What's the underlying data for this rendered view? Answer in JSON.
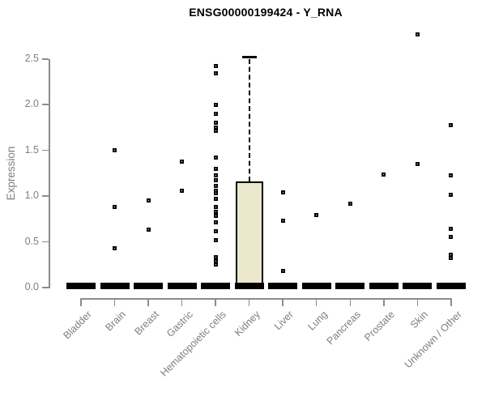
{
  "title": "ENSG00000199424 - Y_RNA",
  "chart_data": {
    "type": "boxplot",
    "title": "ENSG00000199424 - Y_RNA",
    "xlabel": "",
    "ylabel": "Expression",
    "ylim": [
      -0.08,
      2.85
    ],
    "yticks": [
      0,
      0.5,
      1,
      1.5,
      2,
      2.5
    ],
    "ytick_labels": [
      "0.0",
      "0.5",
      "1.0",
      "1.5",
      "2.0",
      "2.5"
    ],
    "grid": false,
    "legend": false,
    "categories": [
      "Bladder",
      "Brain",
      "Breast",
      "Gastric",
      "Hematopoietic cells",
      "Kidney",
      "Liver",
      "Lung",
      "Pancreas",
      "Prostate",
      "Skin",
      "Unknown / Other"
    ],
    "groups": [
      {
        "label": "Bladder",
        "q1": 0,
        "median": 0.02,
        "q3": 0.05,
        "whisker_high": null,
        "outliers": []
      },
      {
        "label": "Brain",
        "q1": 0,
        "median": 0.02,
        "q3": 0.05,
        "whisker_high": null,
        "outliers": [
          1.5,
          0.88,
          0.43
        ]
      },
      {
        "label": "Breast",
        "q1": 0,
        "median": 0.02,
        "q3": 0.05,
        "whisker_high": null,
        "outliers": [
          0.95,
          0.63
        ]
      },
      {
        "label": "Gastric",
        "q1": 0,
        "median": 0.02,
        "q3": 0.05,
        "whisker_high": null,
        "outliers": [
          1.38,
          1.06
        ]
      },
      {
        "label": "Hematopoietic cells",
        "q1": 0,
        "median": 0.02,
        "q3": 0.05,
        "whisker_high": null,
        "outliers": [
          2.42,
          2.34,
          2.0,
          1.9,
          1.8,
          1.75,
          1.71,
          1.42,
          1.3,
          1.23,
          1.17,
          1.11,
          1.06,
          1.03,
          0.97,
          0.88,
          0.83,
          0.78,
          0.71,
          0.62,
          0.52,
          0.33,
          0.29,
          0.25
        ]
      },
      {
        "label": "Kidney",
        "q1": 0,
        "median": 0.02,
        "q3": 1.15,
        "whisker_high": 2.52,
        "outliers": []
      },
      {
        "label": "Liver",
        "q1": 0,
        "median": 0.02,
        "q3": 0.05,
        "whisker_high": null,
        "outliers": [
          1.04,
          0.73,
          0.18
        ]
      },
      {
        "label": "Lung",
        "q1": 0,
        "median": 0.02,
        "q3": 0.05,
        "whisker_high": null,
        "outliers": [
          0.79
        ]
      },
      {
        "label": "Pancreas",
        "q1": 0,
        "median": 0.02,
        "q3": 0.05,
        "whisker_high": null,
        "outliers": [
          0.92
        ]
      },
      {
        "label": "Prostate",
        "q1": 0,
        "median": 0.02,
        "q3": 0.05,
        "whisker_high": null,
        "outliers": [
          1.24
        ]
      },
      {
        "label": "Skin",
        "q1": 0,
        "median": 0.02,
        "q3": 0.05,
        "whisker_high": null,
        "outliers": [
          2.77,
          1.35
        ]
      },
      {
        "label": "Unknown / Other",
        "q1": 0,
        "median": 0.02,
        "q3": 0.05,
        "whisker_high": null,
        "outliers": [
          1.78,
          1.23,
          1.01,
          0.64,
          0.55,
          0.36,
          0.32
        ]
      }
    ],
    "colors": {
      "box_fill": "#ece8cd",
      "box_border": "#000000",
      "median": "#000000",
      "outlier": "#000000",
      "axis_line": "#8c8c8c",
      "axis_text": "#7e7e7e",
      "title_text": "#000000",
      "background": "#ffffff"
    }
  }
}
